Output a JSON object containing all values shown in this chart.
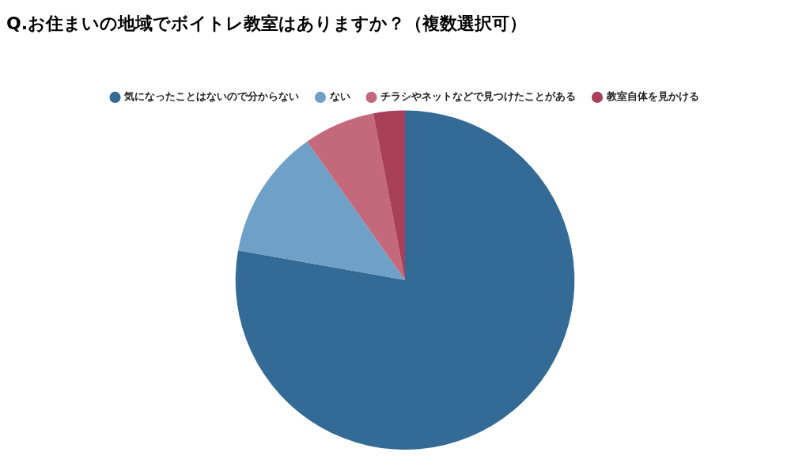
{
  "chart_data": {
    "type": "pie",
    "title": "Q.お住まいの地域でボイトレ教室はありますか？（複数選択可）",
    "categories": [
      "気になったことはないので分からない",
      "ない",
      "チラシやネットなどで見つけたことがある",
      "教室自体を見かける"
    ],
    "values": [
      77.8,
      12.4,
      6.8,
      3.0
    ],
    "colors": [
      "#346a96",
      "#6fa1c8",
      "#c4697b",
      "#a8405a"
    ],
    "legend": "top"
  }
}
